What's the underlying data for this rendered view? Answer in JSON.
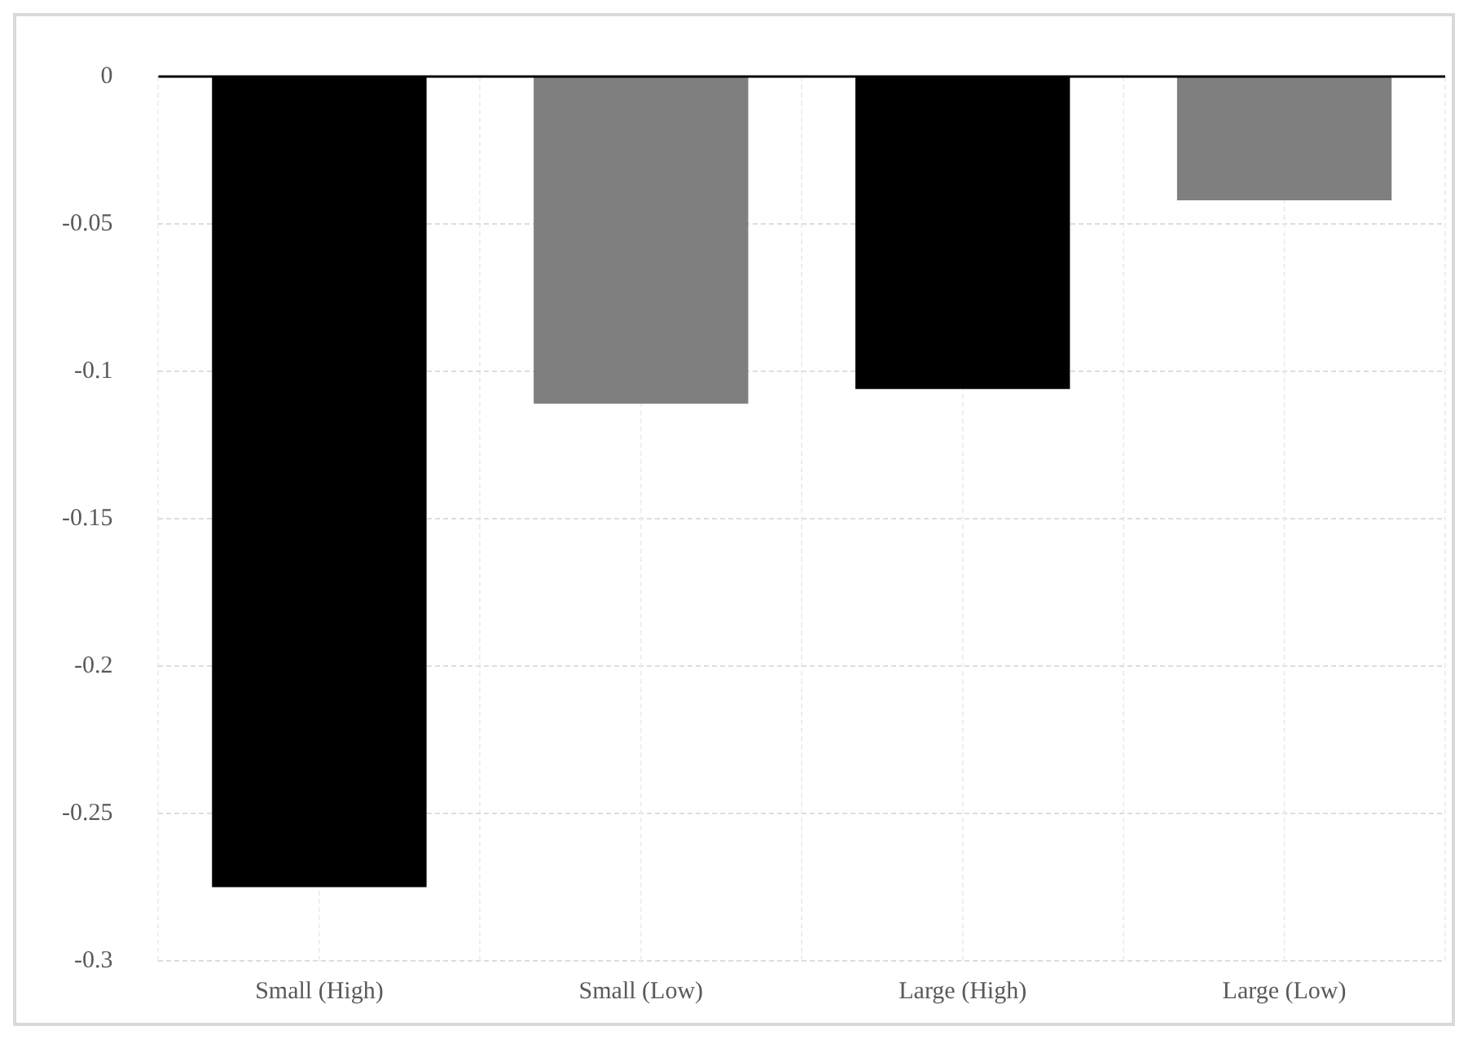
{
  "chart_data": {
    "type": "bar",
    "categories": [
      "Small (High)",
      "Small (Low)",
      "Large (High)",
      "Large (Low)"
    ],
    "values": [
      -0.275,
      -0.111,
      -0.106,
      -0.042
    ],
    "colors": [
      "#000000",
      "#7f7f7f",
      "#000000",
      "#7f7f7f"
    ],
    "ylim": [
      -0.3,
      0
    ],
    "yticks": [
      -0.3,
      -0.25,
      -0.2,
      -0.15,
      -0.1,
      -0.05,
      0
    ],
    "grid": true
  }
}
